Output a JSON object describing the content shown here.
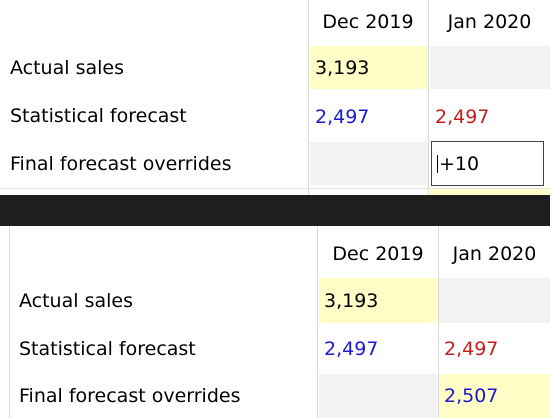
{
  "top": {
    "columns": [
      "Dec 2019",
      "Jan 2020"
    ],
    "rows": [
      {
        "label": "Actual sales",
        "dec": "3,193",
        "jan": ""
      },
      {
        "label": "Statistical forecast",
        "dec": "2,497",
        "jan": "2,497"
      },
      {
        "label": "Final forecast overrides",
        "dec": "",
        "jan": "+10"
      }
    ]
  },
  "bottom": {
    "columns": [
      "Dec 2019",
      "Jan 2020"
    ],
    "rows": [
      {
        "label": "Actual sales",
        "dec": "3,193",
        "jan": ""
      },
      {
        "label": "Statistical forecast",
        "dec": "2,497",
        "jan": "2,497"
      },
      {
        "label": "Final forecast overrides",
        "dec": "",
        "jan": "2,507"
      }
    ]
  },
  "colors": {
    "yellow_cell": "#fefec6",
    "grey_cell": "#f2f2f2",
    "statistical_dec": "#1a1acc",
    "statistical_jan": "#c41e1e",
    "override_result": "#1a1acc"
  }
}
